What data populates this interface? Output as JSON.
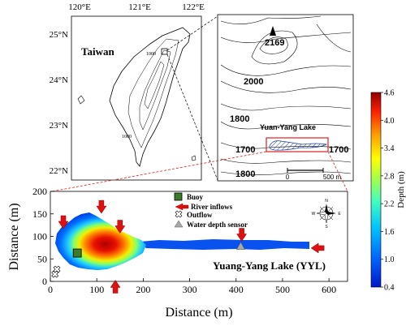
{
  "taiwan_map": {
    "lon_labels": [
      "120°E",
      "121°E",
      "122°E"
    ],
    "lat_labels": [
      "25°N",
      "24°N",
      "23°N",
      "22°N"
    ],
    "region_label": "Taiwan",
    "contour_labels": [
      "1000",
      "1000"
    ]
  },
  "inset_topo": {
    "peak_label": "2169",
    "contour_labels": [
      "2000",
      "1800",
      "1700",
      "1700",
      "1800"
    ],
    "lake_label": "Yuan-Yang Lake",
    "scale_bar": {
      "start": "0",
      "end": "500 m"
    }
  },
  "colorbar": {
    "title": "Depth (m)",
    "ticks": [
      "4.6",
      "4.0",
      "3.4",
      "2.8",
      "2.2",
      "1.6",
      "1.0",
      "0.4"
    ],
    "range_m": [
      0.4,
      4.6
    ]
  },
  "lake_plot": {
    "title": "Yuang-Yang Lake (YYL)",
    "x_axis_label": "Distance (m)",
    "y_axis_label": "Distance (m)",
    "x_ticks": [
      "0",
      "100",
      "200",
      "300",
      "400",
      "500",
      "600"
    ],
    "y_ticks": [
      "0",
      "50",
      "100",
      "150",
      "200"
    ],
    "xlim": [
      0,
      640
    ],
    "ylim": [
      0,
      200
    ],
    "legend": {
      "buoy": "Buoy",
      "river_inflows": "River inflows",
      "outflow": "Outflow",
      "depth_sensor": "Water depth sensor"
    },
    "compass": {
      "n": "N",
      "s": "S",
      "e": "E",
      "w": "W"
    },
    "markers": {
      "buoy": {
        "x_m": 58,
        "y_m": 63
      },
      "depth_sensor": {
        "x_m": 410,
        "y_m": 78
      },
      "outflows": [
        {
          "x_m": 14,
          "y_m": 27
        },
        {
          "x_m": 10,
          "y_m": 16
        }
      ],
      "inflows": [
        {
          "x_m": 28,
          "y_m": 128,
          "dir": "down"
        },
        {
          "x_m": 110,
          "y_m": 162,
          "dir": "down"
        },
        {
          "x_m": 150,
          "y_m": 118,
          "dir": "down"
        },
        {
          "x_m": 412,
          "y_m": 100,
          "dir": "down"
        },
        {
          "x_m": 572,
          "y_m": 74,
          "dir": "left"
        },
        {
          "x_m": 140,
          "y_m": -8,
          "dir": "up"
        }
      ]
    }
  }
}
